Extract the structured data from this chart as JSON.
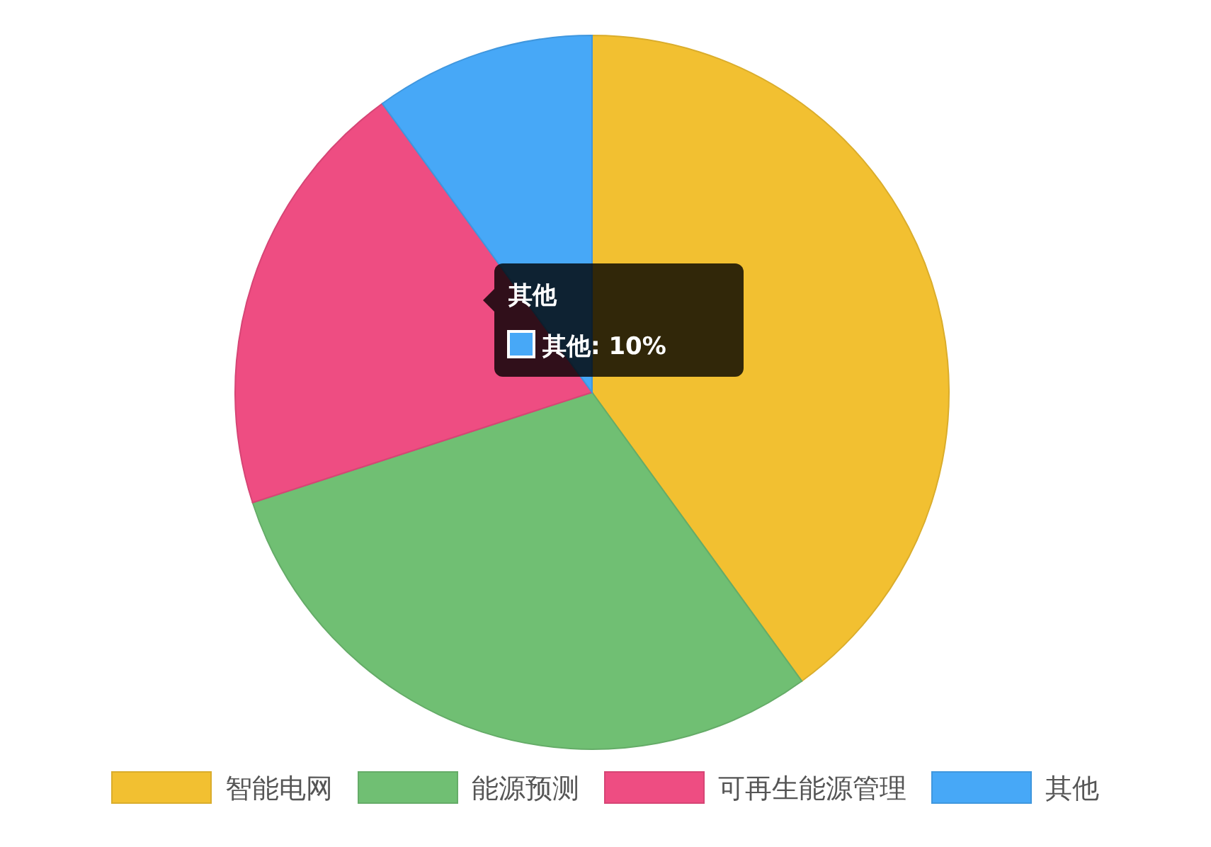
{
  "chart_data": {
    "type": "pie",
    "categories": [
      "智能电网",
      "能源预测",
      "可再生能源管理",
      "其他"
    ],
    "values": [
      40,
      30,
      20,
      10
    ],
    "colors": [
      "#f2c031",
      "#70bf73",
      "#ee4d82",
      "#47a8f7"
    ],
    "legend": "bottom",
    "annotations": [
      "其他",
      "其他: 10%"
    ]
  }
}
